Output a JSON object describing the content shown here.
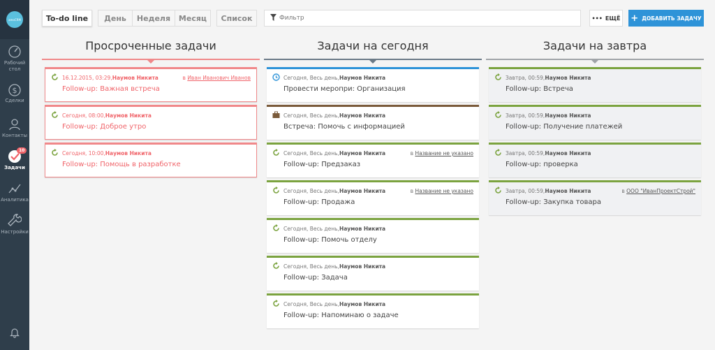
{
  "sidebar": {
    "logo": "amoCRM",
    "items": [
      {
        "label": "Рабочий стол",
        "icon": "dashboard-icon"
      },
      {
        "label": "Сделки",
        "icon": "dollar-icon"
      },
      {
        "label": "Контакты",
        "icon": "contacts-icon"
      },
      {
        "label": "Задачи",
        "icon": "tasks-check-icon",
        "badge": "10",
        "active": true
      },
      {
        "label": "Аналитика",
        "icon": "analytics-icon"
      },
      {
        "label": "Настройки",
        "icon": "settings-icon"
      }
    ]
  },
  "toolbar": {
    "views": [
      "To-do line",
      "День",
      "Неделя",
      "Месяц",
      "Список"
    ],
    "active_view": "To-do line",
    "filter_placeholder": "Фильтр",
    "more_label": "ЕЩЁ",
    "add_label": "ДОБАВИТЬ ЗАДАЧУ"
  },
  "colors": {
    "overdue": "#f0888a",
    "today_line": "#6b7a87",
    "call": "#2e93d8",
    "meeting": "#7a5a3a",
    "followup": "#7ba33f",
    "accent": "#2e93d8"
  },
  "columns": [
    {
      "title": "Просроченные задачи",
      "cards": [
        {
          "when": "16.12.2015, 03:29, ",
          "who": "Наумов Никита",
          "link_prefix": "в ",
          "link": "Иван Иванович Иванов",
          "title": "Follow-up: Важная встреча",
          "type": "followup"
        },
        {
          "when": "Сегодня, 08:00, ",
          "who": "Наумов Никита",
          "title": "Follow-up: Доброе утро",
          "type": "followup"
        },
        {
          "when": "Сегодня, 10:00, ",
          "who": "Наумов Никита",
          "title": "Follow-up: Помощь в разработке",
          "type": "followup"
        }
      ]
    },
    {
      "title": "Задачи на сегодня",
      "cards": [
        {
          "when": "Сегодня, Весь день, ",
          "who": "Наумов Никита",
          "title": "Провести меропри: Организация",
          "type": "call"
        },
        {
          "when": "Сегодня, Весь день, ",
          "who": "Наумов Никита",
          "title": "Встреча: Помочь с информацией",
          "type": "meeting"
        },
        {
          "when": "Сегодня, Весь день, ",
          "who": "Наумов Никита",
          "link_prefix": "в ",
          "link": "Название не указано",
          "title": "Follow-up: Предзаказ",
          "type": "followup"
        },
        {
          "when": "Сегодня, Весь день, ",
          "who": "Наумов Никита",
          "link_prefix": "в ",
          "link": "Название не указано",
          "title": "Follow-up: Продажа",
          "type": "followup"
        },
        {
          "when": "Сегодня, Весь день, ",
          "who": "Наумов Никита",
          "title": "Follow-up: Помочь отделу",
          "type": "followup"
        },
        {
          "when": "Сегодня, Весь день, ",
          "who": "Наумов Никита",
          "title": "Follow-up: Задача",
          "type": "followup"
        },
        {
          "when": "Сегодня, Весь день, ",
          "who": "Наумов Никита",
          "title": "Follow-up: Напоминаю о задаче",
          "type": "followup"
        }
      ]
    },
    {
      "title": "Задачи на завтра",
      "cards": [
        {
          "when": "Завтра, 00:59, ",
          "who": "Наумов Никита",
          "title": "Follow-up: Встреча",
          "type": "followup"
        },
        {
          "when": "Завтра, 00:59, ",
          "who": "Наумов Никита",
          "title": "Follow-up: Получение платежей",
          "type": "followup"
        },
        {
          "when": "Завтра, 00:59, ",
          "who": "Наумов Никита",
          "title": "Follow-up: проверка",
          "type": "followup"
        },
        {
          "when": "Завтра, 00:59, ",
          "who": "Наумов Никита",
          "link_prefix": "в ",
          "link": "ООО \"ИванПроектСтрой\"",
          "title": "Follow-up: Закупка товара",
          "type": "followup"
        }
      ]
    }
  ]
}
